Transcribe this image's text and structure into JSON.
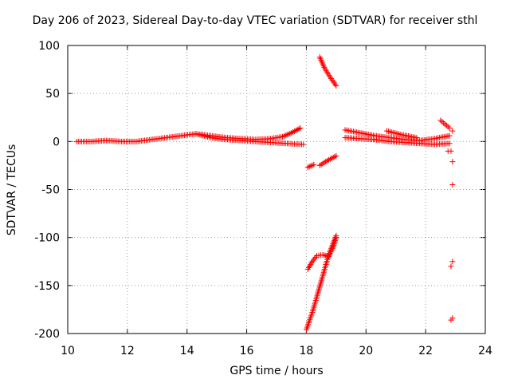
{
  "chart_data": {
    "type": "scatter",
    "title": "Day 206 of 2023, Sidereal Day-to-day VTEC variation (SDTVAR) for receiver sthl",
    "xlabel": "GPS time / hours",
    "ylabel": "SDTVAR / TECUs",
    "xlim": [
      10,
      24
    ],
    "ylim": [
      -200,
      100
    ],
    "xticks": [
      "10",
      "12",
      "14",
      "16",
      "18",
      "20",
      "22",
      "24"
    ],
    "yticks": [
      "-200",
      "-150",
      "-100",
      "-50",
      "0",
      "50",
      "100"
    ],
    "grid": true,
    "legend": "none",
    "series": [
      {
        "color": "#ff0000",
        "marker": "+",
        "segments": [
          [
            [
              10.3,
              0
            ],
            [
              10.8,
              0
            ],
            [
              11.3,
              1
            ],
            [
              11.8,
              0
            ],
            [
              12.3,
              0
            ],
            [
              12.8,
              2
            ],
            [
              13.3,
              4
            ],
            [
              13.8,
              6
            ],
            [
              14.3,
              8
            ],
            [
              14.8,
              6
            ],
            [
              15.3,
              4
            ],
            [
              15.8,
              3
            ],
            [
              16.3,
              2
            ],
            [
              16.8,
              3
            ],
            [
              17.2,
              5
            ],
            [
              17.5,
              9
            ],
            [
              17.8,
              14
            ]
          ],
          [
            [
              14.3,
              8
            ],
            [
              14.8,
              4
            ],
            [
              15.3,
              2
            ],
            [
              15.8,
              1
            ],
            [
              16.3,
              0
            ],
            [
              16.8,
              -1
            ],
            [
              17.3,
              -2
            ],
            [
              17.9,
              -3
            ]
          ],
          [
            [
              18.05,
              -27
            ],
            [
              18.25,
              -24
            ]
          ],
          [
            [
              18.45,
              -25
            ],
            [
              18.7,
              -20
            ],
            [
              19.0,
              -15
            ]
          ],
          [
            [
              18.45,
              88
            ],
            [
              18.6,
              77
            ],
            [
              18.8,
              67
            ],
            [
              19.0,
              58
            ]
          ],
          [
            [
              18.05,
              -133
            ],
            [
              18.2,
              -125
            ],
            [
              18.35,
              -119
            ],
            [
              18.55,
              -118
            ],
            [
              18.75,
              -120
            ],
            [
              18.9,
              -110
            ],
            [
              19.0,
              -100
            ]
          ],
          [
            [
              18.0,
              -196
            ],
            [
              18.2,
              -178
            ],
            [
              18.35,
              -162
            ],
            [
              18.55,
              -140
            ],
            [
              18.75,
              -118
            ],
            [
              19.0,
              -98
            ]
          ],
          [
            [
              19.3,
              12
            ],
            [
              19.8,
              9
            ],
            [
              20.3,
              6
            ],
            [
              20.8,
              4
            ],
            [
              21.3,
              2
            ],
            [
              21.8,
              1
            ],
            [
              22.3,
              3
            ],
            [
              22.8,
              6
            ]
          ],
          [
            [
              19.3,
              4
            ],
            [
              19.8,
              3
            ],
            [
              20.3,
              2
            ],
            [
              20.8,
              0
            ],
            [
              21.3,
              -1
            ],
            [
              21.8,
              -2
            ],
            [
              22.3,
              -3
            ],
            [
              22.8,
              -2
            ]
          ],
          [
            [
              20.7,
              11
            ],
            [
              21.2,
              7
            ],
            [
              21.7,
              4
            ]
          ],
          [
            [
              22.5,
              22
            ],
            [
              22.65,
              18
            ],
            [
              22.8,
              14
            ]
          ]
        ],
        "points": [
          [
            22.9,
            11
          ],
          [
            22.75,
            -10
          ],
          [
            22.85,
            -10
          ],
          [
            22.9,
            -21
          ],
          [
            22.9,
            -45
          ],
          [
            22.9,
            -125
          ],
          [
            22.85,
            -130
          ],
          [
            22.9,
            -184
          ],
          [
            22.85,
            -186
          ]
        ]
      }
    ]
  }
}
